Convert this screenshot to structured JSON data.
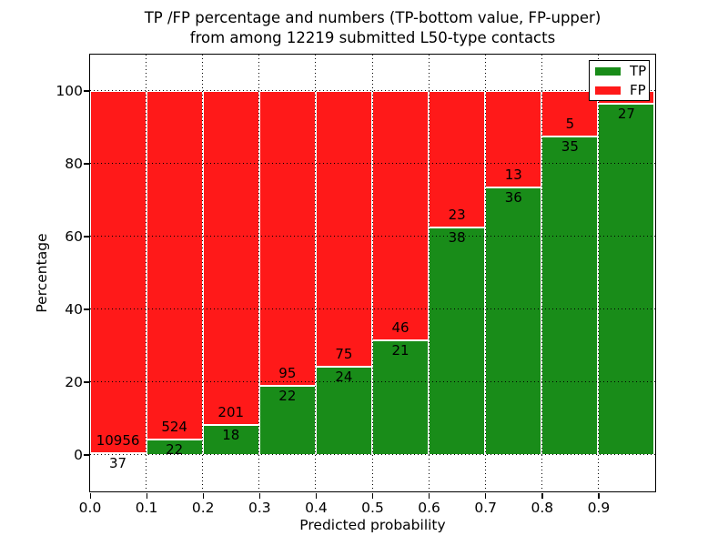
{
  "title": {
    "line1": "TP /FP percentage and numbers (TP-bottom value, FP-upper)",
    "line2": "from among 12219 submitted L50-type contacts"
  },
  "axes": {
    "xlabel": "Predicted probability",
    "ylabel": "Percentage"
  },
  "colors": {
    "tp_green": "#198c19",
    "fp_red": "#ff1919",
    "background": "#ffffff",
    "axis": "#000000"
  },
  "chart_data": {
    "type": "bar",
    "stacked": true,
    "title": "TP /FP percentage and numbers (TP-bottom value, FP-upper)\nfrom among 12219 submitted L50-type contacts",
    "xlabel": "Predicted probability",
    "ylabel": "Percentage",
    "xlim": [
      0.0,
      1.0
    ],
    "ylim": [
      -10,
      110
    ],
    "grid": "dotted",
    "x_tick_labels": [
      "0.0",
      "0.1",
      "0.2",
      "0.3",
      "0.4",
      "0.5",
      "0.6",
      "0.7",
      "0.8",
      "0.9"
    ],
    "y_tick_labels": [
      "0",
      "20",
      "40",
      "60",
      "80",
      "100"
    ],
    "y_tick_values": [
      0,
      20,
      40,
      60,
      80,
      100
    ],
    "categories": [
      "0.0-0.1",
      "0.1-0.2",
      "0.2-0.3",
      "0.3-0.4",
      "0.4-0.5",
      "0.5-0.6",
      "0.6-0.7",
      "0.7-0.8",
      "0.8-0.9",
      "0.9-1.0"
    ],
    "series": [
      {
        "name": "TP",
        "color": "#198c19",
        "values": [
          37,
          22,
          18,
          22,
          24,
          21,
          38,
          36,
          35,
          27
        ]
      },
      {
        "name": "FP",
        "color": "#ff1919",
        "values": [
          10956,
          524,
          201,
          95,
          75,
          46,
          23,
          13,
          5,
          null
        ]
      }
    ],
    "tp_percent": [
      0.34,
      4.03,
      8.22,
      18.8,
      24.24,
      31.34,
      62.3,
      73.47,
      87.5,
      96.43
    ],
    "bar_value_labels": {
      "tp": [
        "37",
        "22",
        "18",
        "22",
        "24",
        "21",
        "38",
        "36",
        "35",
        "27"
      ],
      "fp": [
        "10956",
        "524",
        "201",
        "95",
        "75",
        "46",
        "23",
        "13",
        "5",
        ""
      ]
    },
    "legend": {
      "position": "upper right",
      "entries": [
        {
          "label": "TP",
          "color": "#198c19"
        },
        {
          "label": "FP",
          "color": "#ff1919"
        }
      ]
    }
  }
}
